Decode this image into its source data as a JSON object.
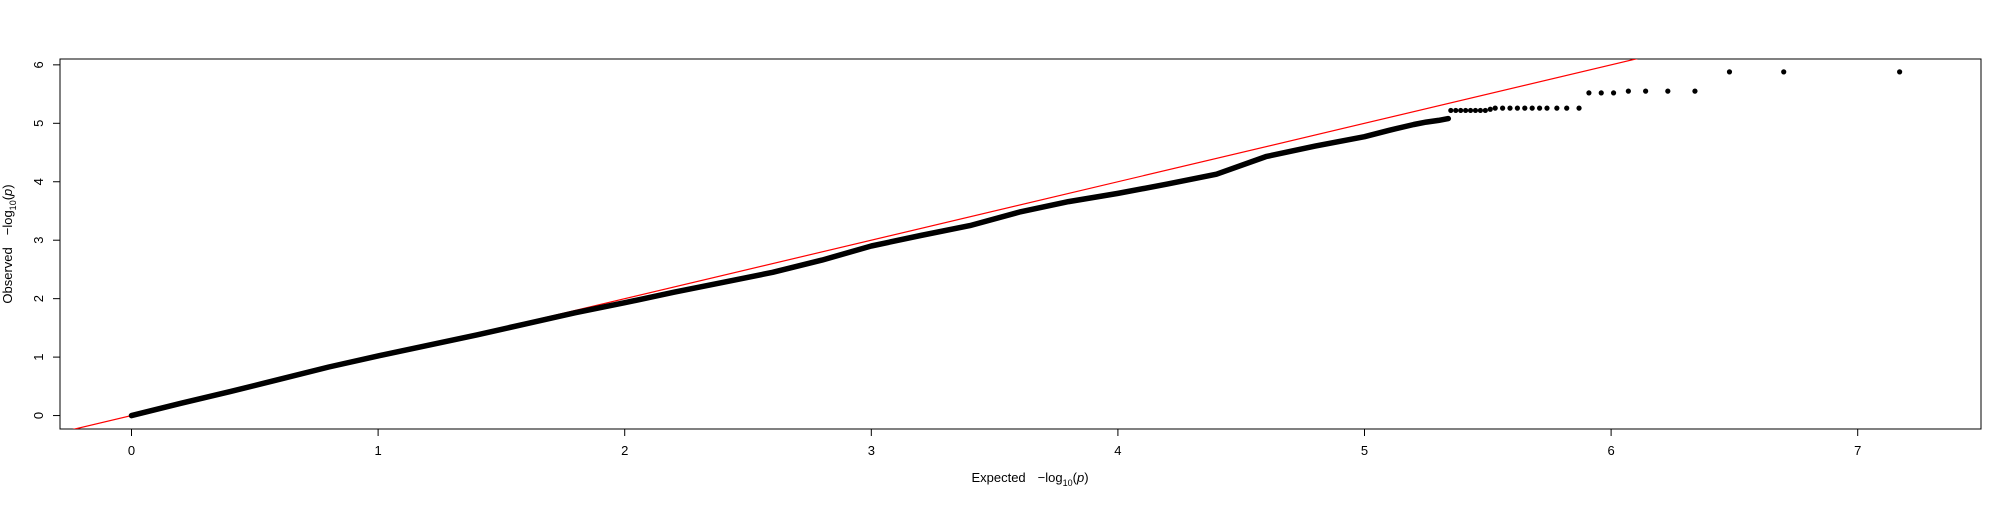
{
  "chart_data": {
    "type": "scatter",
    "title": "",
    "xlabel": {
      "main": "Expected",
      "expr_prefix": "−log",
      "expr_sub": "10",
      "expr_arg_open": "(",
      "expr_var": "p",
      "expr_arg_close": ")"
    },
    "ylabel": {
      "main": "Observed",
      "expr_prefix": "−log",
      "expr_sub": "10",
      "expr_arg_open": "(",
      "expr_var": "p",
      "expr_arg_close": ")"
    },
    "xlim": [
      -0.29,
      7.5
    ],
    "ylim": [
      -0.23,
      6.1
    ],
    "x_ticks": [
      0,
      1,
      2,
      3,
      4,
      5,
      6,
      7
    ],
    "x_tick_labels": [
      "0",
      "1",
      "2",
      "3",
      "4",
      "5",
      "6",
      "7"
    ],
    "y_ticks": [
      0,
      1,
      2,
      3,
      4,
      5,
      6
    ],
    "y_tick_labels": [
      "0",
      "1",
      "2",
      "3",
      "4",
      "5",
      "6"
    ],
    "reference_line": {
      "slope": 1,
      "intercept": 0,
      "color": "#ff0000"
    },
    "point_color": "#000000",
    "dense_curve": [
      [
        0,
        0
      ],
      [
        0.2,
        0.21
      ],
      [
        0.4,
        0.41
      ],
      [
        0.6,
        0.62
      ],
      [
        0.8,
        0.83
      ],
      [
        1.0,
        1.02
      ],
      [
        1.2,
        1.2
      ],
      [
        1.4,
        1.38
      ],
      [
        1.6,
        1.57
      ],
      [
        1.8,
        1.76
      ],
      [
        2.0,
        1.93
      ],
      [
        2.2,
        2.11
      ],
      [
        2.4,
        2.28
      ],
      [
        2.6,
        2.45
      ],
      [
        2.8,
        2.66
      ],
      [
        3.0,
        2.9
      ],
      [
        3.2,
        3.08
      ],
      [
        3.4,
        3.25
      ],
      [
        3.6,
        3.48
      ],
      [
        3.8,
        3.66
      ],
      [
        4.0,
        3.8
      ],
      [
        4.2,
        3.96
      ],
      [
        4.4,
        4.13
      ],
      [
        4.6,
        4.43
      ],
      [
        4.8,
        4.61
      ],
      [
        5.0,
        4.77
      ],
      [
        5.1,
        4.88
      ],
      [
        5.2,
        4.98
      ],
      [
        5.25,
        5.02
      ],
      [
        5.3,
        5.05
      ],
      [
        5.34,
        5.08
      ]
    ],
    "sparse_points": [
      [
        5.35,
        5.22
      ],
      [
        5.37,
        5.22
      ],
      [
        5.39,
        5.22
      ],
      [
        5.41,
        5.22
      ],
      [
        5.43,
        5.22
      ],
      [
        5.45,
        5.22
      ],
      [
        5.47,
        5.22
      ],
      [
        5.49,
        5.22
      ],
      [
        5.51,
        5.24
      ],
      [
        5.53,
        5.26
      ],
      [
        5.56,
        5.26
      ],
      [
        5.59,
        5.26
      ],
      [
        5.62,
        5.26
      ],
      [
        5.65,
        5.26
      ],
      [
        5.68,
        5.26
      ],
      [
        5.71,
        5.26
      ],
      [
        5.74,
        5.26
      ],
      [
        5.78,
        5.26
      ],
      [
        5.82,
        5.26
      ],
      [
        5.87,
        5.26
      ],
      [
        5.91,
        5.52
      ],
      [
        5.96,
        5.52
      ],
      [
        6.01,
        5.52
      ],
      [
        6.07,
        5.55
      ],
      [
        6.14,
        5.55
      ],
      [
        6.23,
        5.55
      ],
      [
        6.34,
        5.55
      ],
      [
        6.48,
        5.88
      ],
      [
        6.7,
        5.88
      ],
      [
        7.17,
        5.88
      ]
    ]
  }
}
